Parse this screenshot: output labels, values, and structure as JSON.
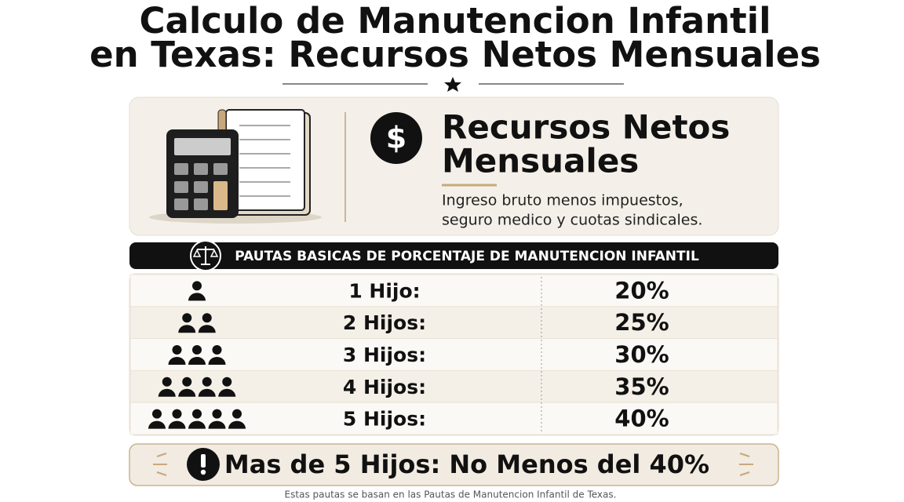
{
  "header": {
    "title_lines": [
      "Calculo de Manutencion Infantil",
      "en Texas: Recursos Netos Mensuales"
    ]
  },
  "info_card": {
    "icon": "$",
    "heading_lines": [
      "Recursos Netos",
      "Mensuales"
    ],
    "description_lines": [
      "Ingreso bruto menos impuestos,",
      "seguro medico y cuotas sindicales."
    ]
  },
  "table": {
    "banner": "PAUTAS BASICAS DE PORCENTAJE DE MANUTENCION INFANTIL",
    "rows": [
      [
        "1 Hijo:",
        "20%"
      ],
      [
        "2 Hijos:",
        "25%"
      ],
      [
        "3 Hijos:",
        "30%"
      ],
      [
        "4 Hijos:",
        "35%"
      ],
      [
        "5 Hijos:",
        "40%"
      ]
    ]
  },
  "callout": {
    "text": "Mas de 5 Hijos: No Menos del 40%"
  },
  "footnote": "Estas pautas se basan en las Pautas de Manutencion Infantil de Texas."
}
